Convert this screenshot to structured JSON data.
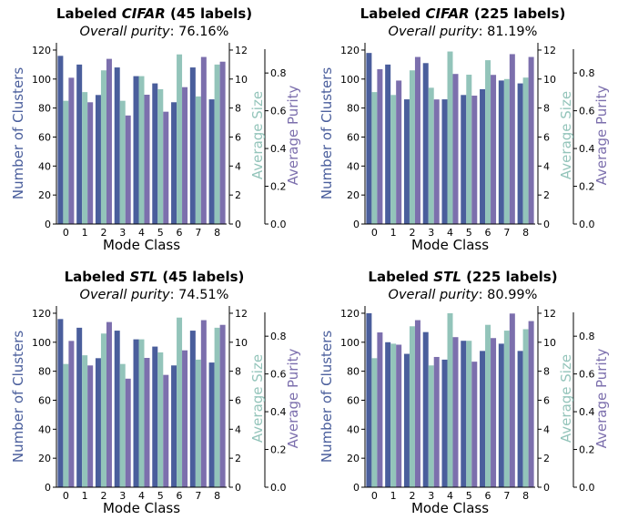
{
  "colors": {
    "clusters": "#4a5e9c",
    "size": "#93c4ba",
    "purity": "#7c6fad",
    "axis": "#000000"
  },
  "chart_data": [
    {
      "type": "bar",
      "title_prefix": "Labeled ",
      "title_em": "CIFAR",
      "title_suffix": " (45 labels)",
      "subtitle_em": "Overall purity",
      "subtitle_rest": ": 76.16%",
      "xlabel": "Mode Class",
      "ylabel_left": "Number of Clusters",
      "ylabel_right1": "Average Size",
      "ylabel_right2": "Average Purity",
      "categories": [
        "0",
        "1",
        "2",
        "3",
        "4",
        "5",
        "6",
        "7",
        "8"
      ],
      "left_ticks": [
        "0",
        "20",
        "40",
        "60",
        "80",
        "100",
        "120"
      ],
      "right1_ticks": [
        "0",
        "2",
        "4",
        "6",
        "8",
        "10",
        "12"
      ],
      "right2_ticks": [
        "0.0",
        "0.2",
        "0.4",
        "0.6",
        "0.8"
      ],
      "ylim_left": [
        0,
        125
      ],
      "ylim_size": [
        0,
        12.5
      ],
      "ylim_purity": [
        0,
        0.96
      ],
      "series": [
        {
          "name": "Number of Clusters",
          "axis": "left",
          "values": [
            116,
            110,
            89,
            108,
            102,
            97,
            84,
            108,
            86
          ]
        },
        {
          "name": "Average Size",
          "axis": "right1",
          "values": [
            8.5,
            9.1,
            10.6,
            8.5,
            10.2,
            9.3,
            11.7,
            8.8,
            11.0
          ]
        },
        {
          "name": "Average Purity",
          "axis": "right2",
          "values": [
            0.775,
            0.645,
            0.875,
            0.575,
            0.685,
            0.595,
            0.725,
            0.885,
            0.86
          ]
        }
      ]
    },
    {
      "type": "bar",
      "title_prefix": "Labeled ",
      "title_em": "CIFAR",
      "title_suffix": " (225 labels)",
      "subtitle_em": "Overall purity",
      "subtitle_rest": ": 81.19%",
      "xlabel": "Mode Class",
      "ylabel_left": "Number of Clusters",
      "ylabel_right1": "Average Size",
      "ylabel_right2": "Average Purity",
      "categories": [
        "0",
        "1",
        "2",
        "3",
        "4",
        "5",
        "6",
        "7",
        "8"
      ],
      "left_ticks": [
        "0",
        "20",
        "40",
        "60",
        "80",
        "100",
        "120"
      ],
      "right1_ticks": [
        "0",
        "2",
        "4",
        "6",
        "8",
        "10",
        "12"
      ],
      "right2_ticks": [
        "0.0",
        "0.2",
        "0.4",
        "0.6",
        "0.8"
      ],
      "ylim_left": [
        0,
        125
      ],
      "ylim_size": [
        0,
        12.5
      ],
      "ylim_purity": [
        0,
        0.96
      ],
      "series": [
        {
          "name": "Number of Clusters",
          "axis": "left",
          "values": [
            118,
            110,
            86,
            111,
            86,
            89,
            93,
            99,
            97
          ]
        },
        {
          "name": "Average Size",
          "axis": "right1",
          "values": [
            9.1,
            8.9,
            10.6,
            9.4,
            11.9,
            10.3,
            11.3,
            10.0,
            10.1
          ]
        },
        {
          "name": "Average Purity",
          "axis": "right2",
          "values": [
            0.82,
            0.76,
            0.885,
            0.66,
            0.795,
            0.68,
            0.79,
            0.9,
            0.885
          ]
        }
      ]
    },
    {
      "type": "bar",
      "title_prefix": "Labeled ",
      "title_em": "STL",
      "title_suffix": " (45 labels)",
      "subtitle_em": "Overall purity",
      "subtitle_rest": ": 74.51%",
      "xlabel": "Mode Class",
      "ylabel_left": "Number of Clusters",
      "ylabel_right1": "Average Size",
      "ylabel_right2": "Average Purity",
      "categories": [
        "0",
        "1",
        "2",
        "3",
        "4",
        "5",
        "6",
        "7",
        "8"
      ],
      "left_ticks": [
        "0",
        "20",
        "40",
        "60",
        "80",
        "100",
        "120"
      ],
      "right1_ticks": [
        "0",
        "2",
        "4",
        "6",
        "8",
        "10",
        "12"
      ],
      "right2_ticks": [
        "0.0",
        "0.2",
        "0.4",
        "0.6",
        "0.8"
      ],
      "ylim_left": [
        0,
        125
      ],
      "ylim_size": [
        0,
        12.5
      ],
      "ylim_purity": [
        0,
        0.96
      ],
      "series": [
        {
          "name": "Number of Clusters",
          "axis": "left",
          "values": [
            116,
            110,
            89,
            108,
            102,
            97,
            84,
            108,
            86
          ]
        },
        {
          "name": "Average Size",
          "axis": "right1",
          "values": [
            8.5,
            9.1,
            10.6,
            8.5,
            10.2,
            9.3,
            11.7,
            8.8,
            11.0
          ]
        },
        {
          "name": "Average Purity",
          "axis": "right2",
          "values": [
            0.775,
            0.645,
            0.875,
            0.575,
            0.685,
            0.595,
            0.725,
            0.885,
            0.86
          ]
        }
      ]
    },
    {
      "type": "bar",
      "title_prefix": "Labeled ",
      "title_em": "STL",
      "title_suffix": " (225 labels)",
      "subtitle_em": "Overall purity",
      "subtitle_rest": ": 80.99%",
      "xlabel": "Mode Class",
      "ylabel_left": "Number of Clusters",
      "ylabel_right1": "Average Size",
      "ylabel_right2": "Average Purity",
      "categories": [
        "0",
        "1",
        "2",
        "3",
        "4",
        "5",
        "6",
        "7",
        "8"
      ],
      "left_ticks": [
        "0",
        "20",
        "40",
        "60",
        "80",
        "100",
        "120"
      ],
      "right1_ticks": [
        "0",
        "2",
        "4",
        "6",
        "8",
        "10",
        "12"
      ],
      "right2_ticks": [
        "0.0",
        "0.2",
        "0.4",
        "0.6",
        "0.8"
      ],
      "ylim_left": [
        0,
        125
      ],
      "ylim_size": [
        0,
        12.5
      ],
      "ylim_purity": [
        0,
        0.96
      ],
      "series": [
        {
          "name": "Number of Clusters",
          "axis": "left",
          "values": [
            120,
            100,
            92,
            107,
            88,
            101,
            94,
            99,
            94
          ]
        },
        {
          "name": "Average Size",
          "axis": "right1",
          "values": [
            8.9,
            9.9,
            11.1,
            8.4,
            12.0,
            10.1,
            11.2,
            10.8,
            10.9
          ]
        },
        {
          "name": "Average Purity",
          "axis": "right2",
          "values": [
            0.82,
            0.755,
            0.885,
            0.69,
            0.795,
            0.665,
            0.79,
            0.92,
            0.88
          ]
        }
      ]
    }
  ]
}
